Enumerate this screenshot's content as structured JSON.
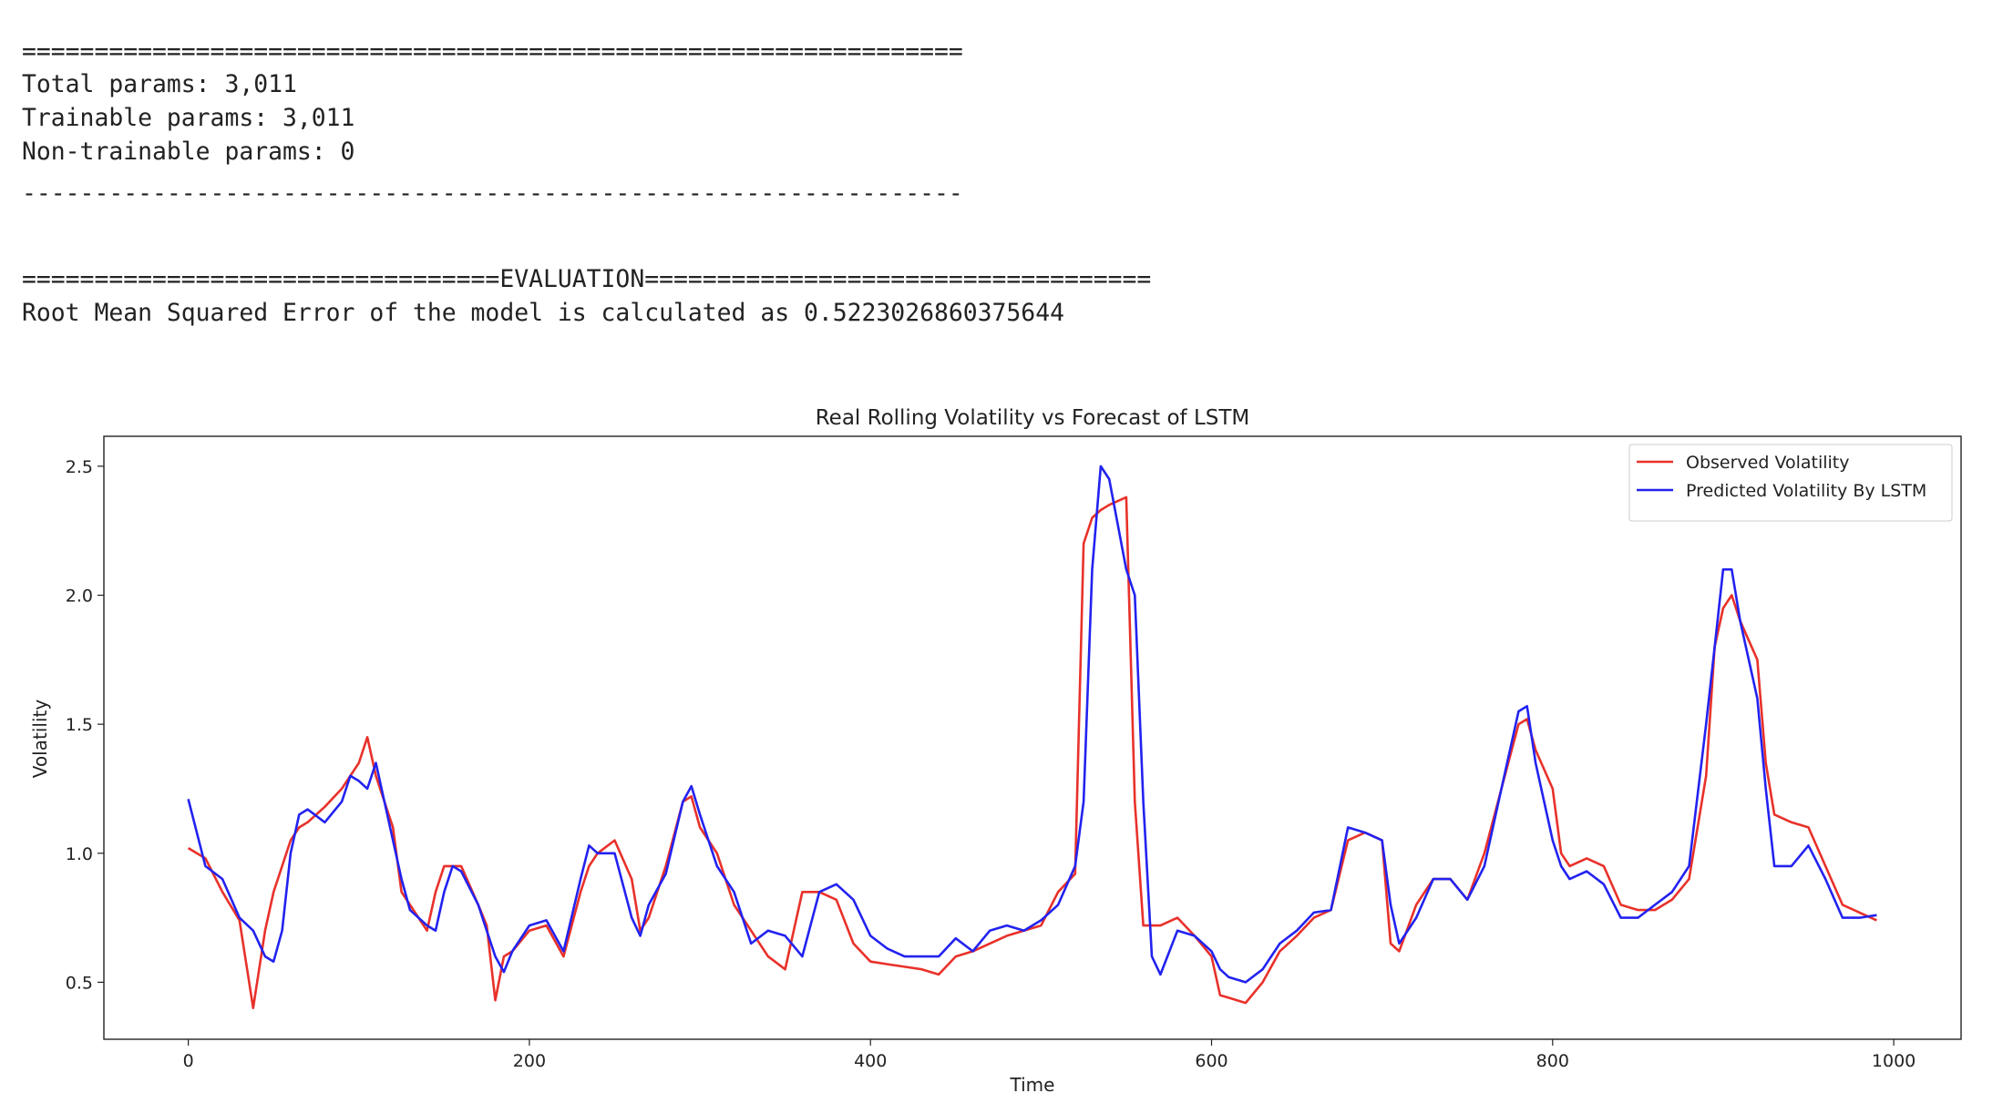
{
  "console": {
    "lines": [
      "=================================================================",
      "Total params: 3,011",
      "Trainable params: 3,011",
      "Non-trainable params: 0",
      "-----------------------------------------------------------------",
      "=================================EVALUATION===================================",
      "Root Mean Squared Error of the model is calculated as  0.5223026860375644"
    ]
  },
  "chart_data": {
    "type": "line",
    "title": "Real Rolling Volatility vs Forecast of LSTM",
    "x_label": "Time",
    "y_label": "Volatility",
    "x": [
      0,
      10,
      20,
      30,
      38,
      45,
      50,
      55,
      60,
      65,
      70,
      80,
      90,
      95,
      100,
      105,
      110,
      120,
      125,
      130,
      140,
      145,
      150,
      155,
      160,
      170,
      175,
      180,
      185,
      190,
      200,
      210,
      220,
      230,
      235,
      240,
      250,
      260,
      265,
      270,
      280,
      290,
      295,
      300,
      310,
      320,
      330,
      340,
      350,
      360,
      370,
      380,
      390,
      400,
      410,
      420,
      430,
      440,
      450,
      460,
      470,
      480,
      490,
      500,
      510,
      520,
      525,
      530,
      535,
      540,
      550,
      555,
      560,
      565,
      570,
      580,
      590,
      600,
      605,
      610,
      620,
      630,
      640,
      650,
      660,
      670,
      680,
      690,
      700,
      705,
      710,
      720,
      730,
      740,
      750,
      760,
      770,
      780,
      785,
      790,
      800,
      805,
      810,
      820,
      830,
      840,
      850,
      860,
      870,
      880,
      890,
      895,
      900,
      905,
      910,
      920,
      925,
      930,
      940,
      950,
      960,
      970,
      980,
      990
    ],
    "series": [
      {
        "name": "Observed Volatility",
        "color": "#e8312a",
        "values": [
          1.02,
          0.98,
          0.85,
          0.74,
          0.4,
          0.7,
          0.85,
          0.95,
          1.05,
          1.1,
          1.12,
          1.18,
          1.25,
          1.3,
          1.35,
          1.45,
          1.3,
          1.1,
          0.85,
          0.8,
          0.7,
          0.85,
          0.95,
          0.95,
          0.95,
          0.8,
          0.72,
          0.43,
          0.6,
          0.62,
          0.7,
          0.72,
          0.6,
          0.85,
          0.95,
          1.0,
          1.05,
          0.9,
          0.7,
          0.75,
          0.95,
          1.2,
          1.22,
          1.1,
          1.0,
          0.8,
          0.7,
          0.6,
          0.55,
          0.85,
          0.85,
          0.82,
          0.65,
          0.58,
          0.57,
          0.56,
          0.55,
          0.53,
          0.6,
          0.62,
          0.65,
          0.68,
          0.7,
          0.72,
          0.85,
          0.92,
          2.2,
          2.3,
          2.33,
          2.35,
          2.38,
          1.2,
          0.72,
          0.72,
          0.72,
          0.75,
          0.68,
          0.6,
          0.45,
          0.44,
          0.42,
          0.5,
          0.62,
          0.68,
          0.75,
          0.78,
          1.05,
          1.08,
          1.05,
          0.65,
          0.62,
          0.8,
          0.9,
          0.9,
          0.82,
          1.0,
          1.25,
          1.5,
          1.52,
          1.4,
          1.25,
          1.0,
          0.95,
          0.98,
          0.95,
          0.8,
          0.78,
          0.78,
          0.82,
          0.9,
          1.3,
          1.8,
          1.95,
          2.0,
          1.9,
          1.75,
          1.35,
          1.15,
          1.12,
          1.1,
          0.95,
          0.8,
          0.77,
          0.74
        ]
      },
      {
        "name": "Predicted Volatility By LSTM",
        "color": "#2222f0",
        "values": [
          1.21,
          0.95,
          0.9,
          0.75,
          0.7,
          0.6,
          0.58,
          0.7,
          1.0,
          1.15,
          1.17,
          1.12,
          1.2,
          1.3,
          1.28,
          1.25,
          1.35,
          1.05,
          0.9,
          0.78,
          0.72,
          0.7,
          0.85,
          0.95,
          0.93,
          0.8,
          0.7,
          0.6,
          0.54,
          0.62,
          0.72,
          0.74,
          0.62,
          0.9,
          1.03,
          1.0,
          1.0,
          0.75,
          0.68,
          0.8,
          0.92,
          1.2,
          1.26,
          1.15,
          0.95,
          0.85,
          0.65,
          0.7,
          0.68,
          0.6,
          0.85,
          0.88,
          0.82,
          0.68,
          0.63,
          0.6,
          0.6,
          0.6,
          0.67,
          0.62,
          0.7,
          0.72,
          0.7,
          0.74,
          0.8,
          0.95,
          1.2,
          2.1,
          2.5,
          2.45,
          2.1,
          2.0,
          1.2,
          0.6,
          0.53,
          0.7,
          0.68,
          0.62,
          0.55,
          0.52,
          0.5,
          0.55,
          0.65,
          0.7,
          0.77,
          0.78,
          1.1,
          1.08,
          1.05,
          0.8,
          0.65,
          0.75,
          0.9,
          0.9,
          0.82,
          0.95,
          1.25,
          1.55,
          1.57,
          1.35,
          1.05,
          0.95,
          0.9,
          0.93,
          0.88,
          0.75,
          0.75,
          0.8,
          0.85,
          0.95,
          1.5,
          1.8,
          2.1,
          2.1,
          1.9,
          1.6,
          1.25,
          0.95,
          0.95,
          1.03,
          0.9,
          0.75,
          0.75,
          0.76
        ]
      }
    ],
    "xlim": [
      -49.5,
      1039.5
    ],
    "xticks": [
      0,
      200,
      400,
      600,
      800,
      1000
    ],
    "ylim": [
      0.279,
      2.616
    ],
    "yticks": [
      0.5,
      {
        "value": 1,
        "label": "1.0"
      },
      1.5,
      {
        "value": 2,
        "label": "2.0"
      },
      2.5
    ],
    "grid": false,
    "legend": "upper right"
  }
}
